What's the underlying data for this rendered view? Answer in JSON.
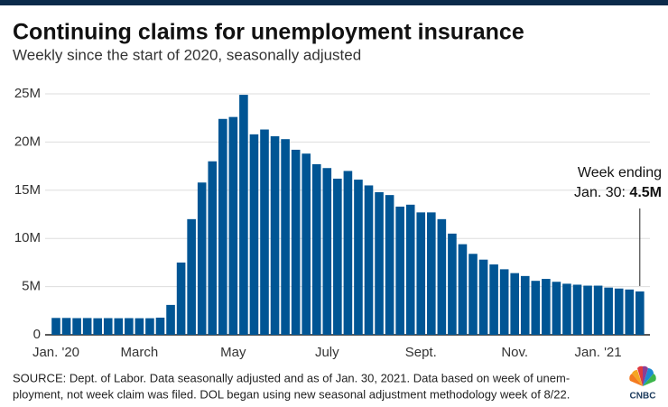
{
  "chart_data": {
    "type": "bar",
    "title": "Continuing claims for unemployment insurance",
    "subtitle": "Weekly since the start of 2020, seasonally adjusted",
    "categories": [
      "Jan. '20",
      null,
      null,
      null,
      null,
      null,
      null,
      null,
      "March",
      null,
      null,
      null,
      null,
      null,
      null,
      null,
      null,
      "May",
      null,
      null,
      null,
      null,
      null,
      null,
      null,
      null,
      "July",
      null,
      null,
      null,
      null,
      null,
      null,
      null,
      null,
      "Sept.",
      null,
      null,
      null,
      null,
      null,
      null,
      null,
      null,
      "Nov.",
      null,
      null,
      null,
      null,
      null,
      null,
      null,
      "Jan. '21",
      null,
      null,
      null,
      null
    ],
    "values": [
      1.75,
      1.75,
      1.73,
      1.74,
      1.72,
      1.73,
      1.72,
      1.73,
      1.72,
      1.72,
      1.78,
      3.1,
      7.5,
      12.0,
      15.8,
      18.0,
      22.4,
      22.6,
      24.9,
      20.8,
      21.3,
      20.6,
      20.3,
      19.2,
      18.8,
      17.7,
      17.3,
      16.2,
      17.0,
      16.1,
      15.5,
      14.8,
      14.5,
      13.3,
      13.5,
      12.7,
      12.7,
      12.0,
      10.5,
      9.4,
      8.4,
      7.8,
      7.3,
      6.8,
      6.4,
      6.1,
      5.6,
      5.8,
      5.5,
      5.3,
      5.2,
      5.1,
      5.1,
      4.9,
      4.8,
      4.7,
      4.5
    ],
    "color": "#005594",
    "ylim": [
      0,
      25
    ],
    "yticks": [
      0,
      {
        "value": 5,
        "label": "5M"
      },
      {
        "value": 10,
        "label": "10M"
      },
      {
        "value": 15,
        "label": "15M"
      },
      {
        "value": 20,
        "label": "20M"
      },
      {
        "value": 25,
        "label": "25M"
      }
    ],
    "grid": true,
    "annotation": {
      "lines": [
        "Week ending",
        "Jan. 30: "
      ],
      "value_label": "4.5M"
    },
    "source": [
      "SOURCE: Dept. of Labor. Data seasonally adjusted and as of Jan. 30, 2021. Data based on week of unem-",
      "ployment, not week claim was filed. DOL began using new seasonal adjustment methodology week of 8/22."
    ],
    "logo": "CNBC"
  }
}
